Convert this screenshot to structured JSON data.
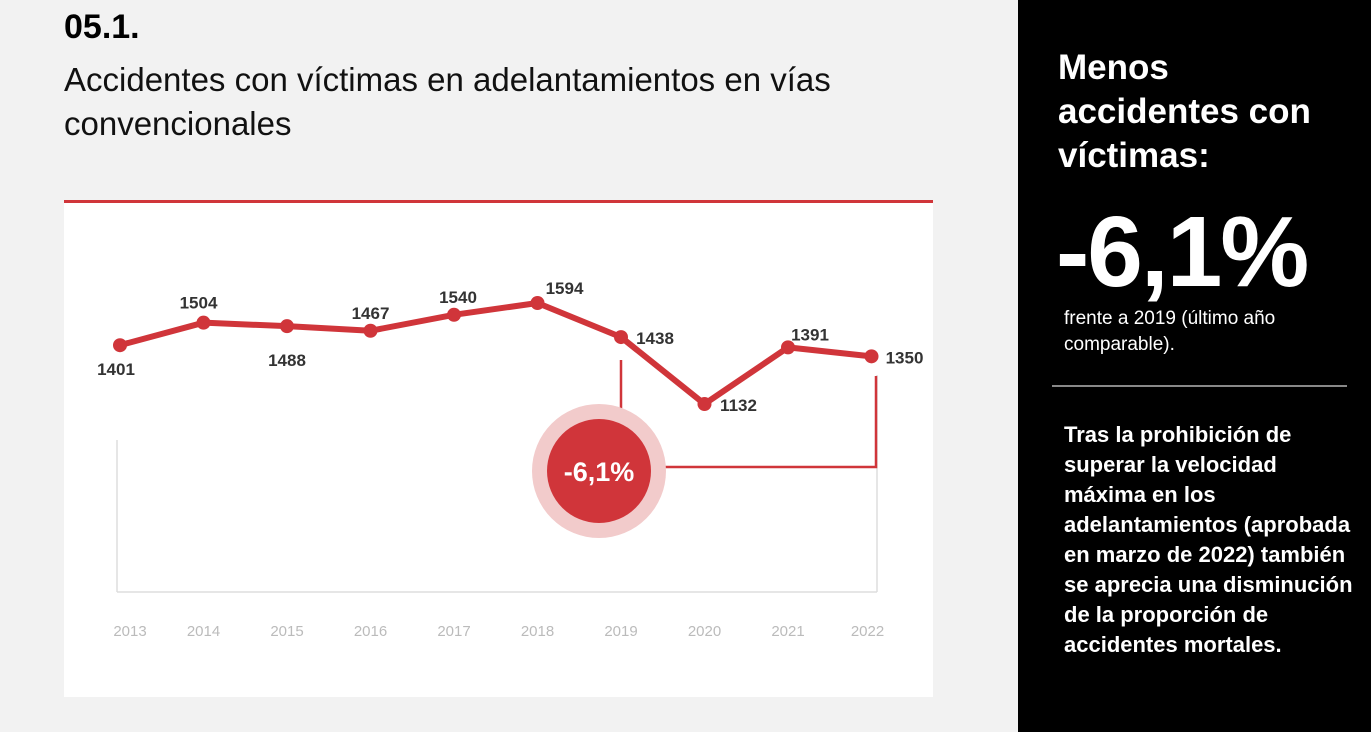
{
  "header": {
    "section": "05.1.",
    "title": "Accidentes con víctimas en adelantamientos en vías convencionales"
  },
  "chart_data": {
    "type": "line",
    "title": "Accidentes con víctimas en adelantamientos en vías convencionales",
    "categories": [
      "2013",
      "2014",
      "2015",
      "2016",
      "2017",
      "2018",
      "2019",
      "2020",
      "2021",
      "2022"
    ],
    "values": [
      1401,
      1504,
      1488,
      1467,
      1540,
      1594,
      1438,
      1132,
      1391,
      1350
    ],
    "labels": [
      "1401",
      "1504",
      "1488",
      "1467",
      "1540",
      "1594",
      "1438",
      "1132",
      "1391",
      "1350"
    ],
    "series_color": "#d0353a",
    "annotation": {
      "text": "-6,1%",
      "from": "2019",
      "to": "2022"
    },
    "xlabel": "",
    "ylabel": "",
    "grid": false
  },
  "side": {
    "heading": "Menos accidentes con víctimas:",
    "big": "-6,1%",
    "sub": "frente a 2019 (último año comparable).",
    "body": "Tras la prohibición de superar la velocidad máxima en los adelantamientos (aprobada en marzo de 2022) también se aprecia una disminución de la proporción de accidentes mortales."
  }
}
